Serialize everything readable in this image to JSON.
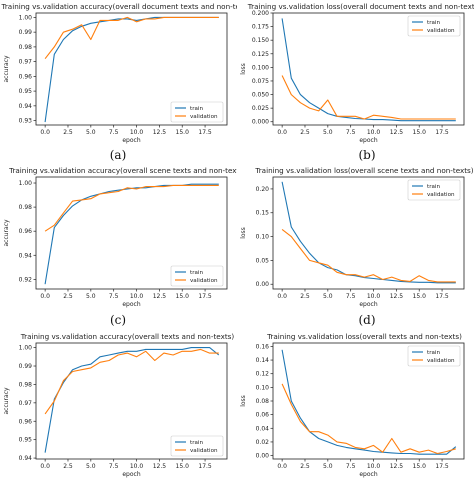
{
  "colors": {
    "train": "#1f77b4",
    "validation": "#ff7f0e",
    "axis": "#222222",
    "background": "#ffffff"
  },
  "chart_data": [
    {
      "type": "line",
      "title": "Training vs.validation accuracy(overall document texts and non-texts)",
      "xlabel": "epoch",
      "ylabel": "accuracy",
      "xlim": [
        -1,
        19.9
      ],
      "ylim": [
        0.927,
        1.003
      ],
      "xticks": [
        0.0,
        2.5,
        5.0,
        7.5,
        10.0,
        12.5,
        15.0,
        17.5
      ],
      "xtick_labels": [
        "0.0",
        "2.5",
        "5.0",
        "7.5",
        "10.0",
        "12.5",
        "15.0",
        "17.5"
      ],
      "yticks": [
        0.93,
        0.94,
        0.95,
        0.96,
        0.97,
        0.98,
        0.99,
        1.0
      ],
      "ytick_labels": [
        "0.93",
        "0.94",
        "0.95",
        "0.96",
        "0.97",
        "0.98",
        "0.99",
        "1.00"
      ],
      "legend": "lower-right",
      "x": [
        0,
        1,
        2,
        3,
        4,
        5,
        6,
        7,
        8,
        9,
        10,
        11,
        12,
        13,
        14,
        15,
        16,
        17,
        18,
        19
      ],
      "series": [
        {
          "name": "train",
          "values": [
            0.929,
            0.975,
            0.985,
            0.991,
            0.994,
            0.996,
            0.997,
            0.998,
            0.999,
            0.999,
            0.998,
            0.999,
            1.0,
            1.0,
            1.0,
            1.0,
            1.0,
            1.0,
            1.0,
            1.0
          ]
        },
        {
          "name": "validation",
          "values": [
            0.972,
            0.98,
            0.99,
            0.992,
            0.995,
            0.985,
            0.998,
            0.998,
            0.998,
            1.0,
            0.997,
            0.999,
            0.999,
            1.0,
            1.0,
            1.0,
            1.0,
            1.0,
            1.0,
            1.0
          ]
        }
      ],
      "caption": "(a)"
    },
    {
      "type": "line",
      "title": "Training vs.validation loss(overall document texts and non-texts)",
      "xlabel": "epoch",
      "ylabel": "loss",
      "xlim": [
        -1,
        19.9
      ],
      "ylim": [
        -0.006,
        0.2
      ],
      "xticks": [
        0.0,
        2.5,
        5.0,
        7.5,
        10.0,
        12.5,
        15.0,
        17.5
      ],
      "xtick_labels": [
        "0.0",
        "2.5",
        "5.0",
        "7.5",
        "10.0",
        "12.5",
        "15.0",
        "17.5"
      ],
      "yticks": [
        0.0,
        0.025,
        0.05,
        0.075,
        0.1,
        0.125,
        0.15,
        0.175,
        0.2
      ],
      "ytick_labels": [
        "0.000",
        "0.025",
        "0.050",
        "0.075",
        "0.100",
        "0.125",
        "0.150",
        "0.175",
        "0.200"
      ],
      "legend": "top-right",
      "x": [
        0,
        1,
        2,
        3,
        4,
        5,
        6,
        7,
        8,
        9,
        10,
        11,
        12,
        13,
        14,
        15,
        16,
        17,
        18,
        19
      ],
      "series": [
        {
          "name": "train",
          "values": [
            0.19,
            0.08,
            0.05,
            0.035,
            0.025,
            0.015,
            0.01,
            0.008,
            0.006,
            0.005,
            0.004,
            0.004,
            0.003,
            0.002,
            0.002,
            0.002,
            0.002,
            0.002,
            0.002,
            0.002
          ]
        },
        {
          "name": "validation",
          "values": [
            0.085,
            0.05,
            0.035,
            0.025,
            0.02,
            0.04,
            0.01,
            0.01,
            0.01,
            0.005,
            0.012,
            0.01,
            0.008,
            0.005,
            0.005,
            0.005,
            0.005,
            0.005,
            0.005,
            0.005
          ]
        }
      ],
      "caption": "(b)"
    },
    {
      "type": "line",
      "title": "Training vs.validation accuracy(overall scene texts and non-texts)",
      "xlabel": "epoch",
      "ylabel": "accuracy",
      "xlim": [
        -1,
        19.9
      ],
      "ylim": [
        0.912,
        1.005
      ],
      "xticks": [
        0.0,
        2.5,
        5.0,
        7.5,
        10.0,
        12.5,
        15.0,
        17.5
      ],
      "xtick_labels": [
        "0.0",
        "2.5",
        "5.0",
        "7.5",
        "10.0",
        "12.5",
        "15.0",
        "17.5"
      ],
      "yticks": [
        0.92,
        0.94,
        0.96,
        0.98,
        1.0
      ],
      "ytick_labels": [
        "0.92",
        "0.94",
        "0.96",
        "0.98",
        "1.00"
      ],
      "legend": "lower-right",
      "x": [
        0,
        1,
        2,
        3,
        4,
        5,
        6,
        7,
        8,
        9,
        10,
        11,
        12,
        13,
        14,
        15,
        16,
        17,
        18,
        19
      ],
      "series": [
        {
          "name": "train",
          "values": [
            0.916,
            0.963,
            0.973,
            0.981,
            0.986,
            0.989,
            0.991,
            0.993,
            0.994,
            0.995,
            0.996,
            0.996,
            0.997,
            0.998,
            0.998,
            0.998,
            0.999,
            0.999,
            0.999,
            0.999
          ]
        },
        {
          "name": "validation",
          "values": [
            0.96,
            0.965,
            0.975,
            0.985,
            0.986,
            0.987,
            0.991,
            0.992,
            0.993,
            0.996,
            0.995,
            0.997,
            0.997,
            0.997,
            0.998,
            0.998,
            0.998,
            0.998,
            0.998,
            0.998
          ]
        }
      ],
      "caption": "(c)"
    },
    {
      "type": "line",
      "title": "Training vs.validation loss(overall scene texts and non-texts)",
      "xlabel": "epoch",
      "ylabel": "loss",
      "xlim": [
        -1,
        19.9
      ],
      "ylim": [
        -0.01,
        0.225
      ],
      "xticks": [
        0.0,
        2.5,
        5.0,
        7.5,
        10.0,
        12.5,
        15.0,
        17.5
      ],
      "xtick_labels": [
        "0.0",
        "2.5",
        "5.0",
        "7.5",
        "10.0",
        "12.5",
        "15.0",
        "17.5"
      ],
      "yticks": [
        0.0,
        0.05,
        0.1,
        0.15,
        0.2
      ],
      "ytick_labels": [
        "0.00",
        "0.05",
        "0.10",
        "0.15",
        "0.20"
      ],
      "legend": "top-right",
      "x": [
        0,
        1,
        2,
        3,
        4,
        5,
        6,
        7,
        8,
        9,
        10,
        11,
        12,
        13,
        14,
        15,
        16,
        17,
        18,
        19
      ],
      "series": [
        {
          "name": "train",
          "values": [
            0.215,
            0.12,
            0.09,
            0.065,
            0.045,
            0.035,
            0.03,
            0.02,
            0.018,
            0.014,
            0.012,
            0.01,
            0.008,
            0.006,
            0.005,
            0.004,
            0.004,
            0.003,
            0.003,
            0.003
          ]
        },
        {
          "name": "validation",
          "values": [
            0.115,
            0.1,
            0.075,
            0.05,
            0.045,
            0.04,
            0.025,
            0.02,
            0.02,
            0.015,
            0.02,
            0.01,
            0.015,
            0.008,
            0.006,
            0.018,
            0.008,
            0.005,
            0.005,
            0.005
          ]
        }
      ],
      "caption": "(d)"
    },
    {
      "type": "line",
      "title": "Training vs.validation accuracy(overall texts and non-texts)",
      "xlabel": "epoch",
      "ylabel": "accuracy",
      "xlim": [
        -1,
        19.9
      ],
      "ylim": [
        0.9395,
        1.0025
      ],
      "xticks": [
        0.0,
        2.5,
        5.0,
        7.5,
        10.0,
        12.5,
        15.0,
        17.5
      ],
      "xtick_labels": [
        "0.0",
        "2.5",
        "5.0",
        "7.5",
        "10.0",
        "12.5",
        "15.0",
        "17.5"
      ],
      "yticks": [
        0.94,
        0.95,
        0.96,
        0.97,
        0.98,
        0.99,
        1.0
      ],
      "ytick_labels": [
        "0.94",
        "0.95",
        "0.96",
        "0.97",
        "0.98",
        "0.99",
        "1.00"
      ],
      "legend": "lower-right",
      "x": [
        0,
        1,
        2,
        3,
        4,
        5,
        6,
        7,
        8,
        9,
        10,
        11,
        12,
        13,
        14,
        15,
        16,
        17,
        18,
        19
      ],
      "series": [
        {
          "name": "train",
          "values": [
            0.943,
            0.972,
            0.981,
            0.988,
            0.99,
            0.991,
            0.995,
            0.996,
            0.997,
            0.998,
            0.998,
            0.999,
            0.999,
            0.999,
            0.999,
            0.999,
            1.0,
            1.0,
            1.0,
            0.996
          ]
        },
        {
          "name": "validation",
          "values": [
            0.964,
            0.971,
            0.982,
            0.987,
            0.988,
            0.989,
            0.992,
            0.993,
            0.996,
            0.997,
            0.995,
            0.998,
            0.993,
            0.997,
            0.996,
            0.998,
            0.998,
            0.999,
            0.997,
            0.997
          ]
        }
      ],
      "caption": ""
    },
    {
      "type": "line",
      "title": "Training vs.validation loss(overall texts and non-texts)",
      "xlabel": "epoch",
      "ylabel": "loss",
      "xlim": [
        -1,
        19.9
      ],
      "ylim": [
        -0.005,
        0.165
      ],
      "xticks": [
        0.0,
        2.5,
        5.0,
        7.5,
        10.0,
        12.5,
        15.0,
        17.5
      ],
      "xtick_labels": [
        "0.0",
        "2.5",
        "5.0",
        "7.5",
        "10.0",
        "12.5",
        "15.0",
        "17.5"
      ],
      "yticks": [
        0.0,
        0.02,
        0.04,
        0.06,
        0.08,
        0.1,
        0.12,
        0.14,
        0.16
      ],
      "ytick_labels": [
        "0.00",
        "0.02",
        "0.04",
        "0.06",
        "0.08",
        "0.10",
        "0.12",
        "0.14",
        "0.16"
      ],
      "legend": "top-right",
      "x": [
        0,
        1,
        2,
        3,
        4,
        5,
        6,
        7,
        8,
        9,
        10,
        11,
        12,
        13,
        14,
        15,
        16,
        17,
        18,
        19
      ],
      "series": [
        {
          "name": "train",
          "values": [
            0.155,
            0.08,
            0.055,
            0.035,
            0.025,
            0.02,
            0.015,
            0.012,
            0.01,
            0.008,
            0.006,
            0.005,
            0.004,
            0.003,
            0.003,
            0.002,
            0.002,
            0.002,
            0.002,
            0.013
          ]
        },
        {
          "name": "validation",
          "values": [
            0.105,
            0.075,
            0.05,
            0.035,
            0.035,
            0.03,
            0.02,
            0.018,
            0.012,
            0.01,
            0.015,
            0.005,
            0.025,
            0.005,
            0.01,
            0.005,
            0.008,
            0.003,
            0.006,
            0.01
          ]
        }
      ],
      "caption": ""
    }
  ]
}
